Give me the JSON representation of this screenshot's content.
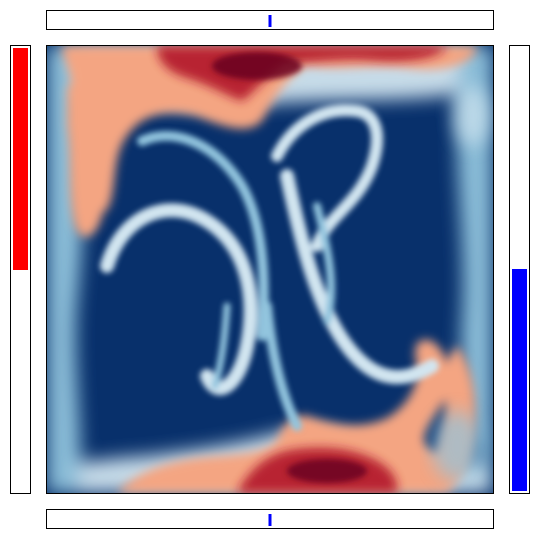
{
  "colors": {
    "deep_blue": "#08306b",
    "mid_blue": "#2166ac",
    "light_blue": "#92c5de",
    "white": "#f7f7f7",
    "light_red": "#f4a582",
    "mid_red": "#b2182b",
    "deep_red": "#67001f",
    "left_gauge": "#ff0000",
    "right_gauge": "#0000ff",
    "slider_marker": "#0000ff"
  },
  "top_slider": {
    "value": 0.5
  },
  "bottom_slider": {
    "value": 0.5
  },
  "left_gauge": {
    "level": 0.5
  },
  "right_gauge": {
    "level": 0.5
  },
  "field": {
    "colormap": "RdBu"
  }
}
